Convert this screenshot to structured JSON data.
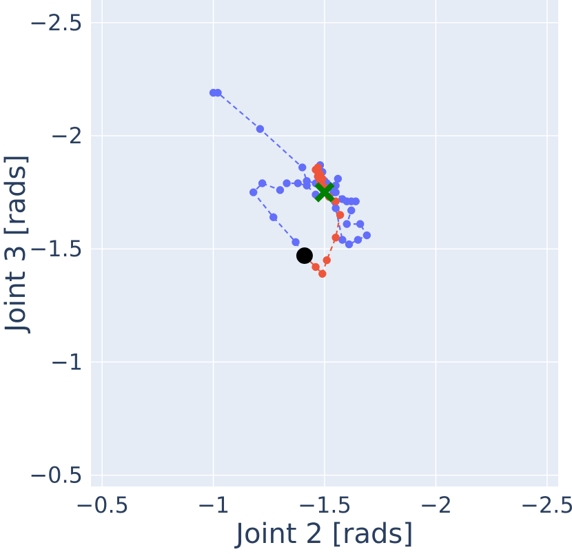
{
  "chart_data": {
    "type": "scatter",
    "xlabel": "Joint 2 [rads]",
    "ylabel": "Joint 3 [rads]",
    "xlim": [
      -0.45,
      -2.55
    ],
    "ylim": [
      -0.45,
      -2.6
    ],
    "x_ticks": [
      -0.5,
      -1,
      -1.5,
      -2,
      -2.5
    ],
    "y_ticks": [
      -0.5,
      -1,
      -1.5,
      -2,
      -2.5
    ],
    "x_tick_labels": [
      "−0.5",
      "−1",
      "−1.5",
      "−2",
      "−2.5"
    ],
    "y_tick_labels": [
      "−0.5",
      "−1",
      "−1.5",
      "−2",
      "−2.5"
    ],
    "grid": true,
    "colors": {
      "plot_bg": "#e5ecf6",
      "grid": "#ffffff",
      "text": "#2a3f5f",
      "series_a": "#636efa",
      "series_b": "#ef553b",
      "start_marker": "#000000",
      "goal_marker": "#008000"
    },
    "series": [
      {
        "color": "#636efa",
        "line": "dashed",
        "x": [
          -1.0,
          -1.02,
          -1.21,
          -1.4,
          -1.42,
          -1.46,
          -1.47,
          -1.48,
          -1.49,
          -1.5,
          -1.51,
          -1.52,
          -1.54,
          -1.55,
          -1.56,
          -1.55,
          -1.58,
          -1.6,
          -1.62,
          -1.64,
          -1.62,
          -1.6,
          -1.66,
          -1.69,
          -1.65,
          -1.61,
          -1.58,
          -1.55,
          -1.5,
          -1.46,
          -1.42,
          -1.38,
          -1.33,
          -1.3,
          -1.22,
          -1.18,
          -1.27,
          -1.37,
          -1.41
        ],
        "y": [
          -2.19,
          -2.19,
          -2.03,
          -1.86,
          -1.8,
          -1.79,
          -1.82,
          -1.87,
          -1.84,
          -1.8,
          -1.79,
          -1.78,
          -1.75,
          -1.78,
          -1.81,
          -1.75,
          -1.72,
          -1.71,
          -1.71,
          -1.71,
          -1.67,
          -1.61,
          -1.61,
          -1.56,
          -1.54,
          -1.52,
          -1.54,
          -1.68,
          -1.75,
          -1.74,
          -1.78,
          -1.79,
          -1.79,
          -1.76,
          -1.79,
          -1.75,
          -1.64,
          -1.53,
          -1.47
        ]
      },
      {
        "color": "#ef553b",
        "line": "dashed",
        "x": [
          -1.41,
          -1.46,
          -1.49,
          -1.51,
          -1.55,
          -1.57,
          -1.55,
          -1.52,
          -1.5,
          -1.49,
          -1.48,
          -1.47,
          -1.47,
          -1.46,
          -1.47,
          -1.48,
          -1.49,
          -1.5
        ],
        "y": [
          -1.47,
          -1.42,
          -1.39,
          -1.45,
          -1.55,
          -1.65,
          -1.71,
          -1.73,
          -1.76,
          -1.78,
          -1.8,
          -1.82,
          -1.84,
          -1.85,
          -1.86,
          -1.83,
          -1.81,
          -1.77
        ]
      }
    ],
    "markers": [
      {
        "type": "circle",
        "color": "#000000",
        "x": -1.41,
        "y": -1.47
      },
      {
        "type": "x",
        "color": "#008000",
        "x": -1.5,
        "y": -1.75
      }
    ]
  }
}
